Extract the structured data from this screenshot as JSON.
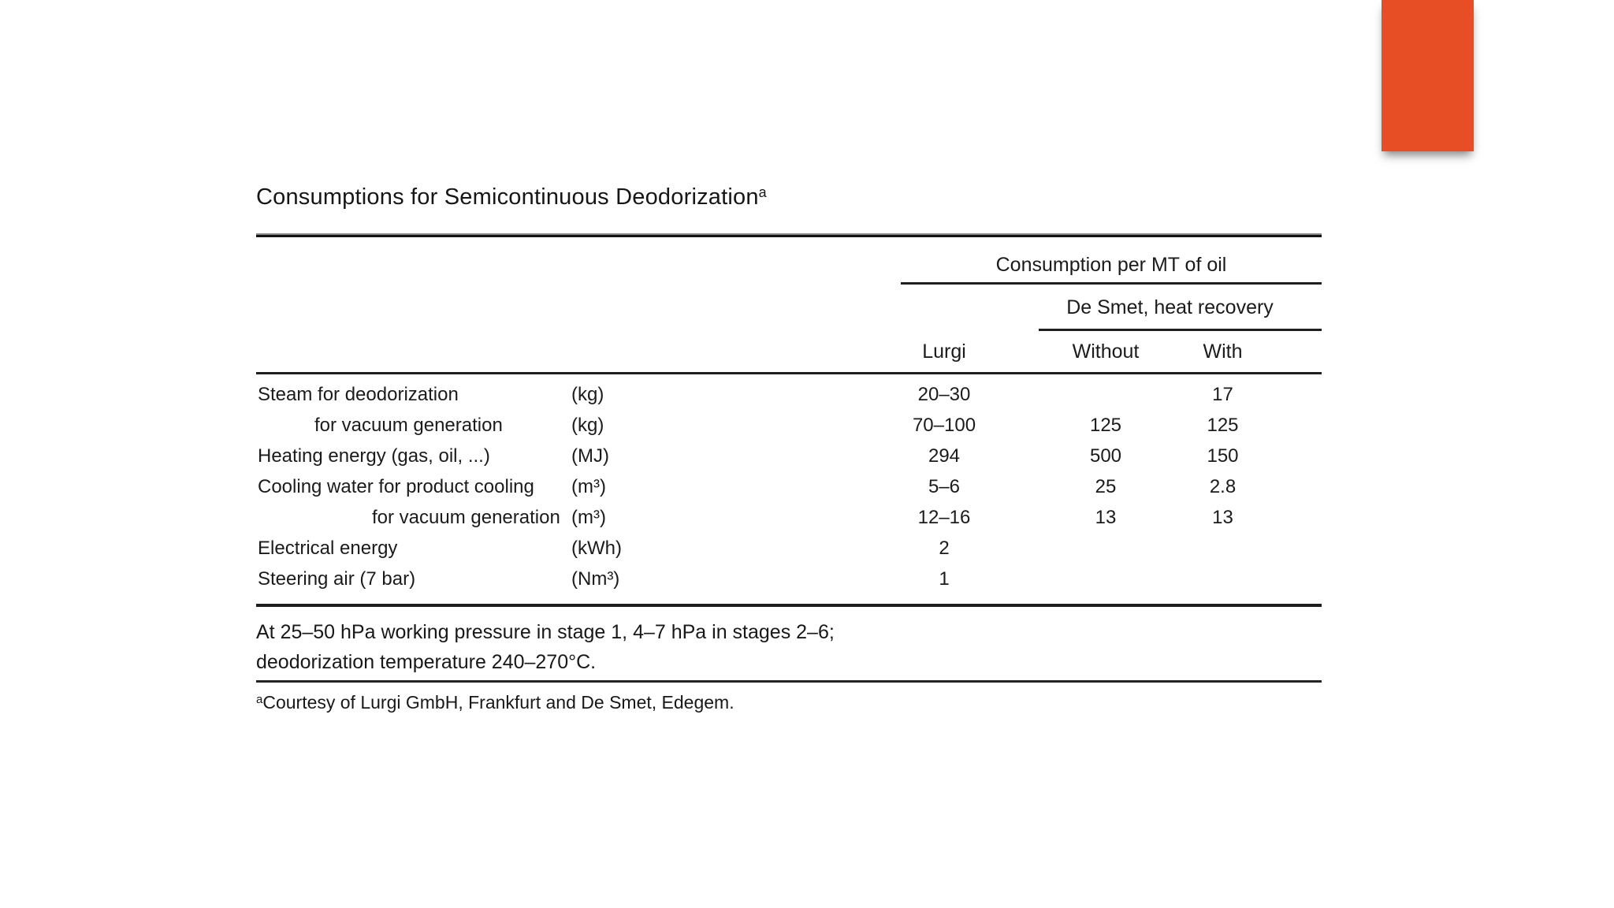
{
  "accent_color": "#E84E26",
  "title": {
    "text": "Consumptions for Semicontinuous Deodorization",
    "superscript": "a"
  },
  "table": {
    "span_header": "Consumption per MT of oil",
    "group_header": "De Smet, heat recovery",
    "columns": {
      "lurgi": "Lurgi",
      "without": "Without",
      "with": "With"
    },
    "rows": [
      {
        "label": "Steam for deodorization",
        "indent": 0,
        "unit": "(kg)",
        "lurgi": "20–30",
        "without": "",
        "with": "17"
      },
      {
        "label": "for vacuum generation",
        "indent": 1,
        "unit": "(kg)",
        "lurgi": "70–100",
        "without": "125",
        "with": "125"
      },
      {
        "label": "Heating energy (gas, oil, ...)",
        "indent": 0,
        "unit": "(MJ)",
        "lurgi": "294",
        "without": "500",
        "with": "150"
      },
      {
        "label": "Cooling water for product cooling",
        "indent": 0,
        "unit": "(m³)",
        "lurgi": "5–6",
        "without": "25",
        "with": "2.8"
      },
      {
        "label": "for vacuum generation",
        "indent": 2,
        "unit": "(m³)",
        "lurgi": "12–16",
        "without": "13",
        "with": "13"
      },
      {
        "label": "Electrical energy",
        "indent": 0,
        "unit": "(kWh)",
        "lurgi": "2",
        "without": "",
        "with": ""
      },
      {
        "label": "Steering air (7 bar)",
        "indent": 0,
        "unit": "(Nm³)",
        "lurgi": "1",
        "without": "",
        "with": ""
      }
    ],
    "notes": [
      "At 25–50 hPa working pressure in stage 1, 4–7 hPa in stages 2–6;",
      "deodorization temperature 240–270°C."
    ],
    "footnote": {
      "superscript": "a",
      "text": "Courtesy of Lurgi GmbH, Frankfurt and De Smet, Edegem."
    }
  }
}
